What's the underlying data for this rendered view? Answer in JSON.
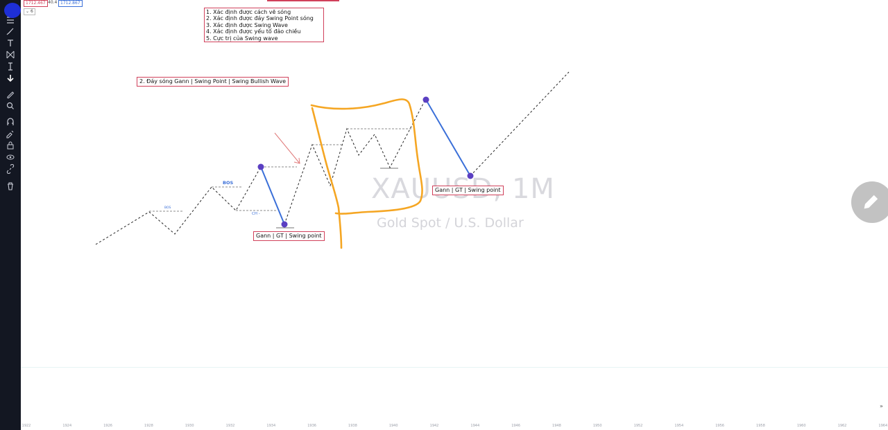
{
  "toolbar": {
    "icons": [
      "menu-icon",
      "brush-icon",
      "text-icon",
      "pattern-icon",
      "measure-icon",
      "arrow-down-icon",
      "pencil-icon",
      "zoom-icon",
      "magnet-icon",
      "lock-draw-icon",
      "lock-icon",
      "eye-icon",
      "link-icon",
      "trash-icon"
    ]
  },
  "legend": {
    "price_low": "1712.467",
    "change": "40.4",
    "price_high": "1712.867",
    "counter": "6"
  },
  "notes": {
    "list": [
      "1. Xác định được cách vẽ sóng",
      "2. Xác định được đáy Swing Point sóng",
      "3. Xác định được Swing Wave",
      "4. Xác định được yếu tố đảo chiều",
      "5. Cực trị của Swing wave"
    ],
    "section_title": "2. Đáy sóng Gann | Swing Point | Swing Bullish Wave",
    "label_left": "Gann | GT | Swing point",
    "label_right": "Gann | GT | Swing point",
    "bos_small": "BOS",
    "bos": "BOS",
    "ch": "CH -"
  },
  "watermark": {
    "symbol": "XAUUSD, 1M",
    "description": "Gold Spot / U.S. Dollar"
  },
  "xaxis": {
    "ticks": [
      "1922",
      "1924",
      "1926",
      "1928",
      "1930",
      "1932",
      "1934",
      "1936",
      "1938",
      "1940",
      "1942",
      "1944",
      "1946",
      "1948",
      "1950",
      "1952",
      "1954",
      "1956",
      "1958",
      "1960",
      "1962",
      "1964"
    ]
  },
  "colors": {
    "toolbar_bg": "#131722",
    "note_border": "#d0405a",
    "swing_point": "#5b3fc2",
    "swing_line": "#3a6fd8",
    "highlight": "#f5a623"
  }
}
